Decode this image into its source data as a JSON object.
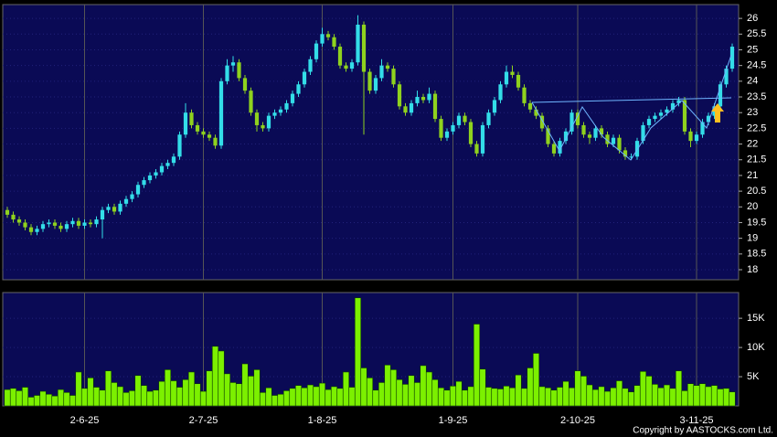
{
  "chart_data": {
    "type": "candlestick",
    "categories": [
      null,
      null,
      null,
      null,
      null,
      null,
      null,
      null,
      null,
      null,
      null,
      null,
      null,
      "2-6-25",
      null,
      null,
      null,
      null,
      null,
      null,
      null,
      null,
      null,
      null,
      null,
      null,
      null,
      null,
      null,
      null,
      null,
      null,
      null,
      "2-7-25",
      null,
      null,
      null,
      null,
      null,
      null,
      null,
      null,
      null,
      null,
      null,
      null,
      null,
      null,
      null,
      null,
      null,
      null,
      null,
      "1-8-25",
      null,
      null,
      null,
      null,
      null,
      null,
      null,
      null,
      null,
      null,
      null,
      null,
      null,
      null,
      null,
      null,
      null,
      null,
      null,
      null,
      null,
      "1-9-25",
      null,
      null,
      null,
      null,
      null,
      null,
      null,
      null,
      null,
      null,
      null,
      null,
      null,
      null,
      null,
      null,
      null,
      null,
      null,
      null,
      "2-10-25",
      null,
      null,
      null,
      null,
      null,
      null,
      null,
      null,
      null,
      null,
      null,
      null,
      null,
      null,
      null,
      null,
      null,
      null,
      null,
      "3-11-25",
      null,
      null,
      null,
      null,
      null,
      null
    ],
    "open": [
      19.9,
      19.75,
      19.6,
      19.5,
      19.35,
      19.2,
      19.3,
      19.45,
      19.5,
      19.4,
      19.3,
      19.45,
      19.55,
      19.4,
      19.5,
      19.45,
      19.6,
      19.9,
      20.0,
      19.85,
      20.1,
      20.25,
      20.4,
      20.7,
      20.85,
      21.0,
      21.1,
      21.3,
      21.4,
      21.6,
      22.3,
      23.0,
      22.6,
      22.4,
      22.3,
      22.2,
      21.95,
      24.0,
      24.5,
      24.6,
      24.1,
      23.7,
      23.0,
      22.6,
      22.5,
      22.9,
      23.0,
      23.1,
      23.3,
      23.6,
      23.9,
      24.3,
      24.7,
      25.2,
      25.5,
      25.4,
      25.1,
      24.5,
      24.4,
      24.6,
      25.8,
      24.3,
      23.7,
      24.1,
      24.5,
      24.4,
      23.9,
      23.2,
      23.0,
      23.3,
      23.5,
      23.4,
      23.6,
      22.8,
      22.2,
      22.4,
      22.6,
      22.9,
      22.7,
      22.0,
      21.7,
      22.6,
      23.0,
      23.4,
      23.9,
      24.3,
      24.2,
      23.8,
      23.3,
      23.1,
      22.9,
      22.5,
      22.0,
      21.7,
      22.1,
      22.4,
      23.0,
      22.6,
      22.3,
      22.2,
      22.5,
      22.3,
      22.0,
      22.2,
      21.8,
      21.6,
      21.6,
      22.1,
      22.6,
      22.8,
      22.9,
      23.0,
      23.1,
      23.3,
      23.4,
      22.4,
      22.1,
      22.3,
      22.7,
      22.9,
      23.2,
      23.9,
      24.4
    ],
    "high": [
      20.0,
      19.85,
      19.7,
      19.6,
      19.45,
      19.4,
      19.55,
      19.6,
      19.6,
      19.5,
      19.55,
      19.65,
      19.65,
      19.6,
      19.6,
      19.7,
      20.0,
      20.1,
      20.1,
      20.2,
      20.35,
      20.5,
      20.8,
      20.95,
      21.1,
      21.2,
      21.4,
      21.5,
      21.7,
      22.4,
      23.3,
      23.1,
      22.7,
      22.5,
      22.4,
      22.3,
      24.1,
      24.7,
      24.8,
      24.7,
      24.2,
      23.8,
      23.1,
      22.7,
      23.0,
      23.1,
      23.2,
      23.4,
      23.7,
      24.0,
      24.4,
      24.8,
      25.3,
      25.7,
      25.6,
      25.5,
      25.2,
      24.6,
      24.7,
      26.1,
      25.9,
      24.4,
      24.2,
      24.7,
      24.6,
      24.5,
      24.0,
      23.3,
      23.4,
      23.7,
      23.6,
      23.8,
      23.7,
      22.9,
      22.5,
      22.7,
      23.0,
      23.0,
      22.8,
      22.1,
      22.7,
      23.1,
      23.5,
      24.0,
      24.5,
      24.5,
      24.3,
      23.9,
      23.4,
      23.2,
      23.0,
      22.6,
      22.1,
      22.2,
      22.5,
      23.1,
      23.1,
      22.7,
      22.4,
      22.6,
      22.6,
      22.4,
      22.3,
      22.3,
      21.9,
      21.7,
      22.2,
      22.7,
      22.9,
      23.0,
      23.1,
      23.2,
      23.4,
      23.5,
      23.5,
      22.5,
      22.4,
      22.8,
      23.0,
      23.3,
      24.0,
      24.5,
      25.2
    ],
    "low": [
      19.65,
      19.5,
      19.4,
      19.25,
      19.1,
      19.1,
      19.2,
      19.35,
      19.3,
      19.2,
      19.2,
      19.35,
      19.3,
      19.3,
      19.35,
      19.35,
      19.0,
      19.8,
      19.75,
      19.75,
      20.0,
      20.15,
      20.3,
      20.6,
      20.75,
      20.9,
      21.0,
      21.2,
      21.3,
      21.5,
      22.2,
      22.5,
      22.3,
      22.2,
      22.1,
      21.85,
      21.85,
      23.9,
      24.3,
      24.0,
      23.6,
      22.9,
      22.4,
      22.4,
      22.4,
      22.8,
      22.9,
      23.0,
      23.2,
      23.5,
      23.8,
      24.2,
      24.6,
      25.1,
      25.3,
      25.0,
      24.4,
      24.3,
      24.3,
      24.5,
      22.3,
      23.6,
      23.6,
      24.0,
      24.3,
      23.8,
      23.1,
      22.9,
      22.9,
      23.2,
      23.3,
      23.3,
      22.7,
      22.1,
      22.1,
      22.3,
      22.5,
      22.6,
      21.9,
      21.6,
      21.6,
      22.5,
      22.9,
      23.3,
      23.8,
      24.1,
      23.7,
      23.2,
      23.0,
      22.8,
      22.4,
      21.9,
      21.6,
      21.6,
      22.0,
      22.3,
      22.5,
      22.2,
      22.0,
      22.1,
      22.2,
      21.9,
      21.9,
      21.7,
      21.5,
      21.5,
      21.5,
      22.0,
      22.5,
      22.7,
      22.8,
      22.9,
      23.0,
      23.2,
      22.3,
      21.9,
      22.0,
      22.2,
      22.6,
      22.8,
      23.1,
      23.8,
      24.3
    ],
    "close": [
      19.75,
      19.6,
      19.5,
      19.35,
      19.2,
      19.3,
      19.45,
      19.5,
      19.4,
      19.3,
      19.45,
      19.55,
      19.4,
      19.5,
      19.45,
      19.6,
      19.9,
      20.0,
      19.85,
      20.1,
      20.25,
      20.4,
      20.7,
      20.85,
      21.0,
      21.1,
      21.3,
      21.4,
      21.6,
      22.3,
      23.0,
      22.6,
      22.4,
      22.3,
      22.2,
      21.95,
      24.0,
      24.5,
      24.6,
      24.1,
      23.7,
      23.0,
      22.6,
      22.5,
      22.9,
      23.0,
      23.1,
      23.3,
      23.6,
      23.9,
      24.3,
      24.7,
      25.2,
      25.5,
      25.4,
      25.1,
      24.5,
      24.4,
      24.6,
      25.8,
      24.3,
      23.7,
      24.1,
      24.5,
      24.4,
      23.9,
      23.2,
      23.0,
      23.3,
      23.5,
      23.4,
      23.6,
      22.8,
      22.2,
      22.4,
      22.6,
      22.9,
      22.7,
      22.0,
      21.7,
      22.6,
      23.0,
      23.4,
      23.9,
      24.3,
      24.2,
      23.8,
      23.3,
      23.1,
      22.9,
      22.5,
      22.0,
      21.7,
      22.1,
      22.4,
      23.0,
      22.6,
      22.3,
      22.2,
      22.5,
      22.3,
      22.0,
      22.2,
      21.8,
      21.6,
      21.6,
      22.1,
      22.6,
      22.8,
      22.9,
      23.0,
      23.1,
      23.3,
      23.4,
      22.4,
      22.1,
      22.3,
      22.7,
      22.9,
      23.2,
      23.9,
      24.4,
      25.1
    ],
    "volume": [
      2800,
      3000,
      2600,
      3200,
      1500,
      1800,
      2500,
      2000,
      1700,
      2800,
      2300,
      1800,
      5800,
      3000,
      4800,
      3200,
      2700,
      6000,
      4000,
      3300,
      2300,
      2600,
      5200,
      3500,
      2500,
      2700,
      4200,
      6200,
      4300,
      3200,
      4500,
      5800,
      3800,
      2500,
      6000,
      10200,
      9400,
      5500,
      4000,
      3800,
      7200,
      5100,
      6200,
      2300,
      3100,
      1800,
      2000,
      2600,
      3000,
      3500,
      3100,
      3600,
      3300,
      3900,
      2800,
      3300,
      3000,
      5800,
      3200,
      18500,
      6500,
      4800,
      2700,
      4000,
      7000,
      6200,
      4500,
      3700,
      5200,
      4000,
      6900,
      5800,
      4500,
      3100,
      2700,
      3400,
      4200,
      2700,
      3300,
      14000,
      6300,
      3200,
      3000,
      2900,
      3400,
      3100,
      5300,
      3000,
      6500,
      9000,
      3300,
      3100,
      2700,
      3200,
      4200,
      3100,
      6000,
      5100,
      3600,
      2800,
      3300,
      2500,
      3100,
      4300,
      3000,
      2400,
      3500,
      5900,
      5100,
      3700,
      3100,
      3600,
      3000,
      6000,
      2600,
      3800,
      3500,
      3800,
      3300,
      3500,
      2900,
      3000,
      2400
    ],
    "ylim": [
      17.68,
      26.44
    ],
    "yticks": [
      18,
      18.5,
      19,
      19.5,
      20,
      20.5,
      21,
      21.5,
      22,
      22.5,
      23,
      23.5,
      24,
      24.5,
      25,
      25.5,
      26
    ],
    "volume_ylim": [
      0,
      19400
    ],
    "volume_yticks": [
      {
        "value": 5000,
        "label": "5K"
      },
      {
        "value": 10000,
        "label": "10K"
      },
      {
        "value": 15000,
        "label": "15K"
      }
    ],
    "up_color": "#33dde8",
    "down_color": "#8fd21e",
    "volume_color": "#7cf000",
    "grid": true
  },
  "copyright": "Copyright by AASTOCKS.com Ltd."
}
